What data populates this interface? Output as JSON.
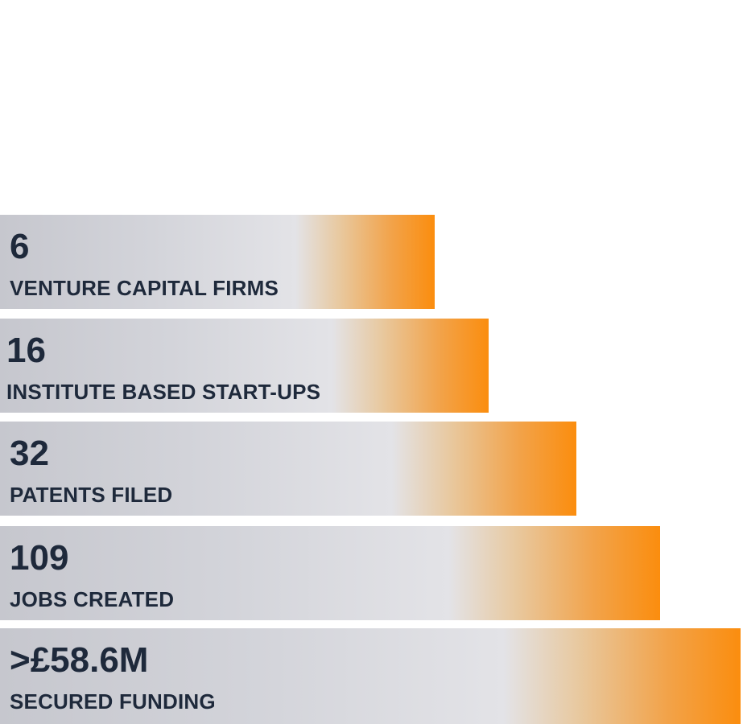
{
  "stats": [
    {
      "value": "6",
      "label": "VENTURE CAPITAL FIRMS"
    },
    {
      "value": "16",
      "label": "INSTITUTE BASED START-UPS"
    },
    {
      "value": "32",
      "label": "PATENTS FILED"
    },
    {
      "value": "109",
      "label": "JOBS CREATED"
    },
    {
      "value": ">£58.6M",
      "label": "SECURED FUNDING"
    }
  ]
}
